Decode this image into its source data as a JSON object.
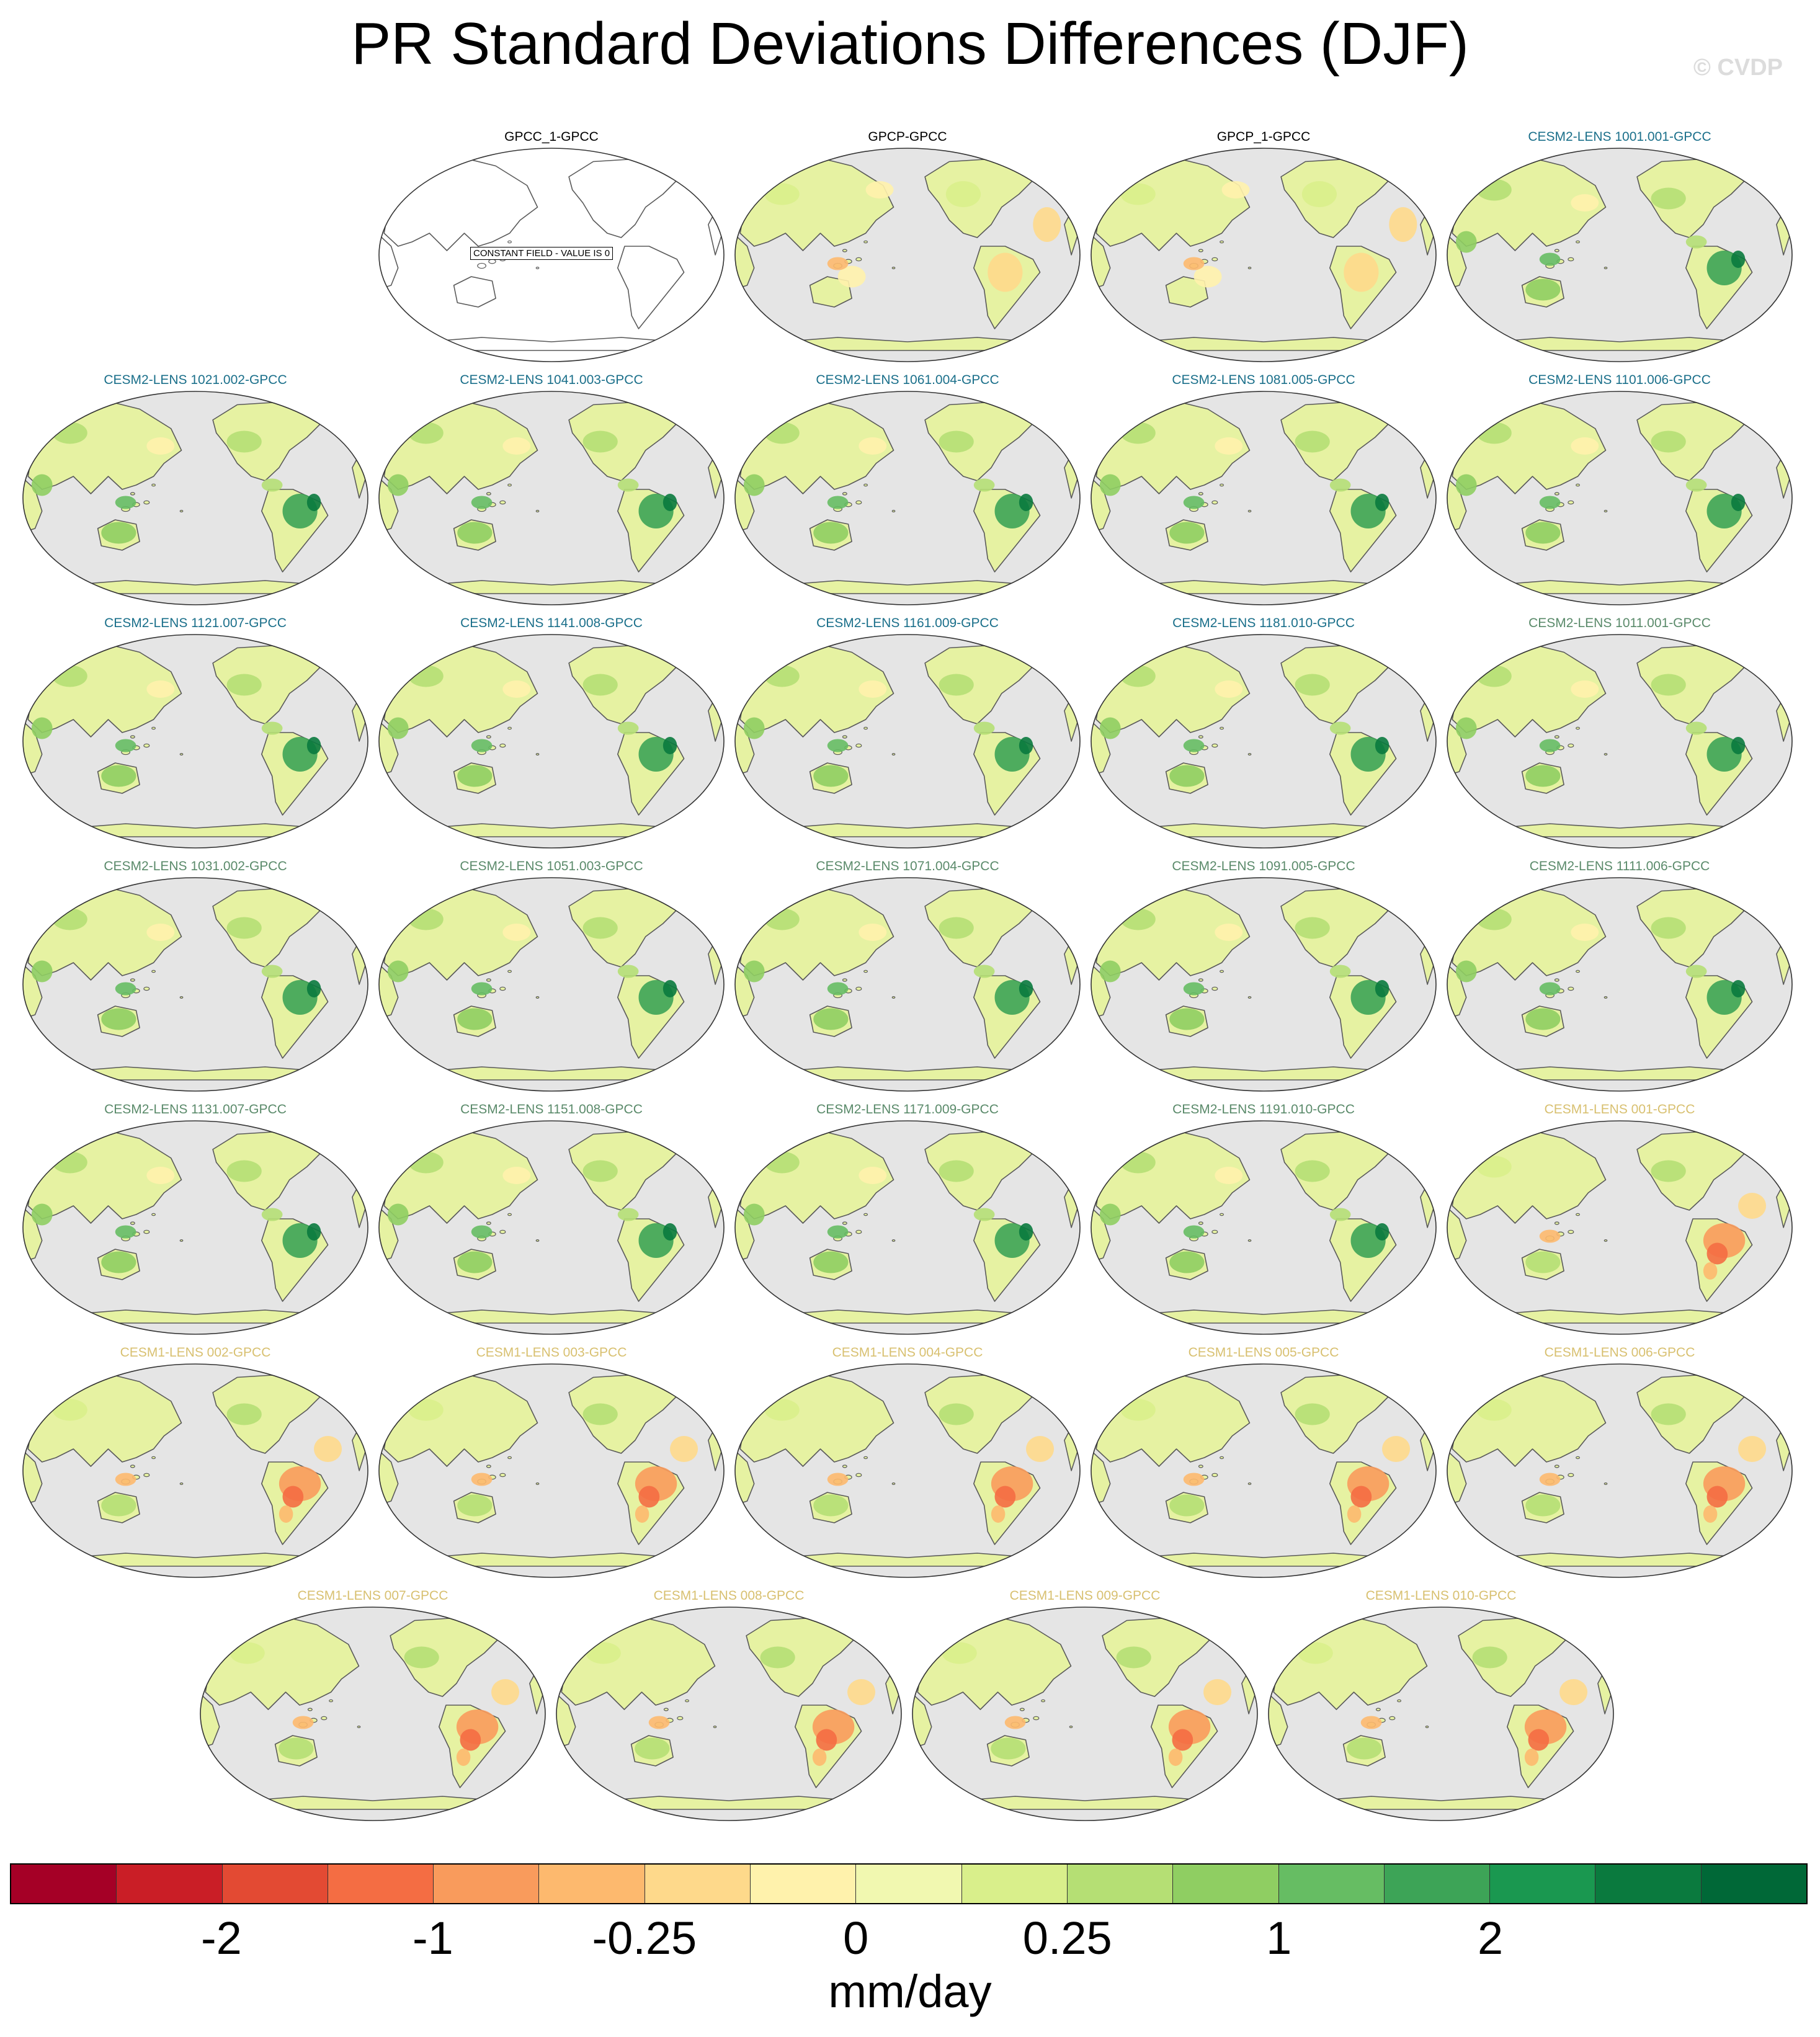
{
  "title": "PR Standard Deviations Differences (DJF)",
  "credit": "© CVDP",
  "panels": [
    {
      "label": "GPCC_1-GPCC",
      "group": "obs",
      "pattern": "constant",
      "note": "CONSTANT FIELD - VALUE IS 0"
    },
    {
      "label": "GPCP-GPCC",
      "group": "obs",
      "pattern": "obs"
    },
    {
      "label": "GPCP_1-GPCC",
      "group": "obs",
      "pattern": "obs"
    },
    {
      "label": "CESM2-LENS 1001.001-GPCC",
      "group": "cesm2_a",
      "pattern": "wet"
    },
    {
      "label": "CESM2-LENS 1021.002-GPCC",
      "group": "cesm2_a",
      "pattern": "wet"
    },
    {
      "label": "CESM2-LENS 1041.003-GPCC",
      "group": "cesm2_a",
      "pattern": "wet"
    },
    {
      "label": "CESM2-LENS 1061.004-GPCC",
      "group": "cesm2_a",
      "pattern": "wet"
    },
    {
      "label": "CESM2-LENS 1081.005-GPCC",
      "group": "cesm2_a",
      "pattern": "wet"
    },
    {
      "label": "CESM2-LENS 1101.006-GPCC",
      "group": "cesm2_a",
      "pattern": "wet"
    },
    {
      "label": "CESM2-LENS 1121.007-GPCC",
      "group": "cesm2_a",
      "pattern": "wet"
    },
    {
      "label": "CESM2-LENS 1141.008-GPCC",
      "group": "cesm2_a",
      "pattern": "wet"
    },
    {
      "label": "CESM2-LENS 1161.009-GPCC",
      "group": "cesm2_a",
      "pattern": "wet"
    },
    {
      "label": "CESM2-LENS 1181.010-GPCC",
      "group": "cesm2_a",
      "pattern": "wet"
    },
    {
      "label": "CESM2-LENS 1011.001-GPCC",
      "group": "cesm2_b",
      "pattern": "wet"
    },
    {
      "label": "CESM2-LENS 1031.002-GPCC",
      "group": "cesm2_b",
      "pattern": "wet"
    },
    {
      "label": "CESM2-LENS 1051.003-GPCC",
      "group": "cesm2_b",
      "pattern": "wet"
    },
    {
      "label": "CESM2-LENS 1071.004-GPCC",
      "group": "cesm2_b",
      "pattern": "wet"
    },
    {
      "label": "CESM2-LENS 1091.005-GPCC",
      "group": "cesm2_b",
      "pattern": "wet"
    },
    {
      "label": "CESM2-LENS 1111.006-GPCC",
      "group": "cesm2_b",
      "pattern": "wet"
    },
    {
      "label": "CESM2-LENS 1131.007-GPCC",
      "group": "cesm2_b",
      "pattern": "wet"
    },
    {
      "label": "CESM2-LENS 1151.008-GPCC",
      "group": "cesm2_b",
      "pattern": "wet"
    },
    {
      "label": "CESM2-LENS 1171.009-GPCC",
      "group": "cesm2_b",
      "pattern": "wet"
    },
    {
      "label": "CESM2-LENS 1191.010-GPCC",
      "group": "cesm2_b",
      "pattern": "wet"
    },
    {
      "label": "CESM1-LENS 001-GPCC",
      "group": "cesm1",
      "pattern": "dry"
    },
    {
      "label": "CESM1-LENS 002-GPCC",
      "group": "cesm1",
      "pattern": "dry"
    },
    {
      "label": "CESM1-LENS 003-GPCC",
      "group": "cesm1",
      "pattern": "dry"
    },
    {
      "label": "CESM1-LENS 004-GPCC",
      "group": "cesm1",
      "pattern": "dry"
    },
    {
      "label": "CESM1-LENS 005-GPCC",
      "group": "cesm1",
      "pattern": "dry"
    },
    {
      "label": "CESM1-LENS 006-GPCC",
      "group": "cesm1",
      "pattern": "dry"
    },
    {
      "label": "CESM1-LENS 007-GPCC",
      "group": "cesm1",
      "pattern": "dry"
    },
    {
      "label": "CESM1-LENS 008-GPCC",
      "group": "cesm1",
      "pattern": "dry"
    },
    {
      "label": "CESM1-LENS 009-GPCC",
      "group": "cesm1",
      "pattern": "dry"
    },
    {
      "label": "CESM1-LENS 010-GPCC",
      "group": "cesm1",
      "pattern": "dry"
    }
  ],
  "title_colors": {
    "obs": "#000000",
    "cesm2_a": "#1a6f8a",
    "cesm2_b": "#5a8a6a",
    "cesm1": "#d8c070"
  },
  "map_colors": {
    "ocean": "#e5e5e5",
    "coast": "#5a5a5a",
    "base_land": "#e6f2a2"
  },
  "colorbar": {
    "colors": [
      "#a50026",
      "#ca1e26",
      "#e34a33",
      "#f46d43",
      "#f99b5c",
      "#fdb96e",
      "#fed98b",
      "#fff2ac",
      "#f1f8b0",
      "#d9ef8b",
      "#b5df74",
      "#8fce62",
      "#66bd63",
      "#3da457",
      "#1a9850",
      "#0a7a3e",
      "#006837"
    ],
    "ticks": [
      {
        "label": "-2",
        "boundary": 2
      },
      {
        "label": "-1",
        "boundary": 4
      },
      {
        "label": "-0.25",
        "boundary": 6
      },
      {
        "label": "0",
        "boundary": 8
      },
      {
        "label": "0.25",
        "boundary": 10
      },
      {
        "label": "1",
        "boundary": 12
      },
      {
        "label": "2",
        "boundary": 14
      }
    ],
    "units": "mm/day"
  }
}
